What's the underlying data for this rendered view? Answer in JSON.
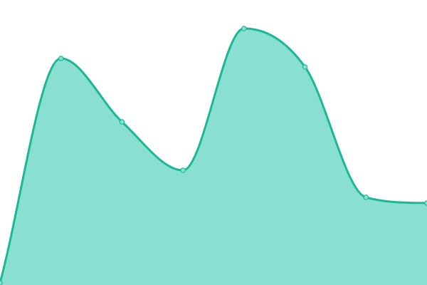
{
  "chart_data": {
    "type": "area",
    "x": [
      0,
      1,
      2,
      3,
      4,
      5,
      6,
      7
    ],
    "series": [
      {
        "values": [
          3,
          318,
          229,
          161,
          360,
          306,
          123,
          115
        ]
      }
    ],
    "ylim": [
      0,
      400
    ],
    "grid": false,
    "legend": "none",
    "smooth": true,
    "colors": {
      "line": "#1cb894",
      "fill": "#8ae0d0",
      "point_fill": "#8ae0d0"
    }
  }
}
